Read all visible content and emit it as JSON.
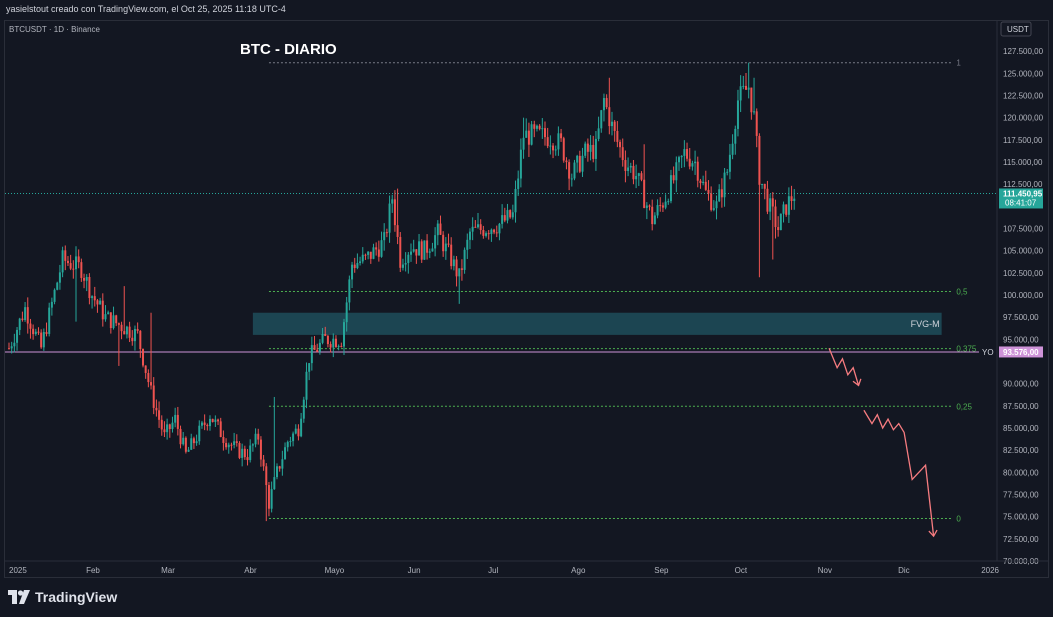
{
  "header": {
    "credit": "yasielstout creado con TradingView.com, el Oct 25, 2025 11:18 UTC-4"
  },
  "chart_meta": {
    "symbol_line": "BTCUSDT · 1D · Binance",
    "title": "BTC - DIARIO",
    "currency_badge": "USDT",
    "price_badge": "111.450,95",
    "countdown_badge": "08:41:07",
    "yo_value_badge": "93.576,00",
    "yo_label": "YO",
    "fvg_label": "FVG-M",
    "colors": {
      "background": "#131722",
      "up": "#26a69a",
      "down": "#ef5350",
      "level": "#4caf50",
      "yo_line": "#ce93d8",
      "fvg_fill": "#1e4e5a",
      "arrow": "#f77c80"
    }
  },
  "chart_data": {
    "type": "candlestick",
    "title": "BTC - DIARIO",
    "symbol": "BTCUSDT · 1D · Binance",
    "ylim": [
      70000,
      130000
    ],
    "y_ticks": [
      {
        "v": 127500,
        "label": "127.500,00"
      },
      {
        "v": 125000,
        "label": "125.000,00"
      },
      {
        "v": 122500,
        "label": "122.500,00"
      },
      {
        "v": 120000,
        "label": "120.000,00"
      },
      {
        "v": 117500,
        "label": "117.500,00"
      },
      {
        "v": 115000,
        "label": "115.000,00"
      },
      {
        "v": 112500,
        "label": "112.500,00"
      },
      {
        "v": 107500,
        "label": "107.500,00"
      },
      {
        "v": 105000,
        "label": "105.000,00"
      },
      {
        "v": 102500,
        "label": "102.500,00"
      },
      {
        "v": 100000,
        "label": "100.000,00"
      },
      {
        "v": 97500,
        "label": "97.500,00"
      },
      {
        "v": 95000,
        "label": "95.000,00"
      },
      {
        "v": 90000,
        "label": "90.000,00"
      },
      {
        "v": 87500,
        "label": "87.500,00"
      },
      {
        "v": 85000,
        "label": "85.000,00"
      },
      {
        "v": 82500,
        "label": "82.500,00"
      },
      {
        "v": 80000,
        "label": "80.000,00"
      },
      {
        "v": 77500,
        "label": "77.500,00"
      },
      {
        "v": 75000,
        "label": "75.000,00"
      },
      {
        "v": 72500,
        "label": "72.500,00"
      },
      {
        "v": 70000,
        "label": "70.000,00"
      }
    ],
    "x_ticks": [
      {
        "d": 0,
        "label": "2025"
      },
      {
        "d": 31,
        "label": "Feb"
      },
      {
        "d": 59,
        "label": "Mar"
      },
      {
        "d": 90,
        "label": "Abr"
      },
      {
        "d": 120,
        "label": "Mayo"
      },
      {
        "d": 151,
        "label": "Jun"
      },
      {
        "d": 181,
        "label": "Jul"
      },
      {
        "d": 212,
        "label": "Ago"
      },
      {
        "d": 243,
        "label": "Sep"
      },
      {
        "d": 273,
        "label": "Oct"
      },
      {
        "d": 304,
        "label": "Nov"
      },
      {
        "d": 334,
        "label": "Dic"
      },
      {
        "d": 365,
        "label": "2026"
      }
    ],
    "candles_close_path": [
      [
        0,
        94000
      ],
      [
        6,
        98500
      ],
      [
        12,
        94000
      ],
      [
        20,
        104000
      ],
      [
        27,
        103000
      ],
      [
        31,
        100000
      ],
      [
        36,
        97500
      ],
      [
        42,
        96500
      ],
      [
        48,
        95500
      ],
      [
        53,
        89000
      ],
      [
        58,
        84000
      ],
      [
        62,
        86000
      ],
      [
        66,
        82000
      ],
      [
        70,
        84000
      ],
      [
        75,
        86500
      ],
      [
        80,
        84000
      ],
      [
        85,
        82500
      ],
      [
        89,
        82000
      ],
      [
        93,
        84000
      ],
      [
        97,
        76500
      ],
      [
        100,
        80000
      ],
      [
        104,
        83500
      ],
      [
        108,
        85000
      ],
      [
        112,
        93000
      ],
      [
        118,
        95000
      ],
      [
        124,
        95000
      ],
      [
        128,
        103500
      ],
      [
        133,
        104000
      ],
      [
        140,
        106000
      ],
      [
        143,
        111000
      ],
      [
        146,
        104000
      ],
      [
        150,
        105500
      ],
      [
        155,
        105000
      ],
      [
        160,
        107000
      ],
      [
        165,
        104000
      ],
      [
        168,
        102000
      ],
      [
        172,
        107000
      ],
      [
        177,
        107500
      ],
      [
        183,
        108000
      ],
      [
        188,
        109000
      ],
      [
        192,
        118000
      ],
      [
        197,
        118000
      ],
      [
        202,
        117800
      ],
      [
        206,
        117000
      ],
      [
        210,
        113500
      ],
      [
        215,
        116000
      ],
      [
        219,
        116500
      ],
      [
        222,
        122000
      ],
      [
        226,
        118000
      ],
      [
        230,
        115000
      ],
      [
        234,
        113500
      ],
      [
        240,
        108500
      ],
      [
        244,
        110500
      ],
      [
        248,
        113000
      ],
      [
        252,
        116000
      ],
      [
        256,
        115000
      ],
      [
        260,
        111500
      ],
      [
        264,
        110000
      ],
      [
        268,
        114000
      ],
      [
        272,
        122000
      ],
      [
        276,
        123500
      ],
      [
        278,
        120000
      ],
      [
        280,
        113500
      ],
      [
        283,
        110500
      ],
      [
        287,
        107500
      ],
      [
        290,
        110000
      ],
      [
        293,
        111450
      ]
    ],
    "high_wicks": [
      [
        43,
        101000
      ],
      [
        53,
        98000
      ],
      [
        99,
        88500
      ],
      [
        105,
        84000
      ],
      [
        145,
        112000
      ],
      [
        192,
        120000
      ],
      [
        224,
        124500
      ],
      [
        237,
        117000
      ],
      [
        276,
        126200
      ],
      [
        278,
        124500
      ]
    ],
    "low_wicks": [
      [
        25,
        97000
      ],
      [
        41,
        92000
      ],
      [
        96,
        74500
      ],
      [
        98,
        75500
      ],
      [
        168,
        99000
      ],
      [
        280,
        102000
      ],
      [
        285,
        104000
      ]
    ],
    "last_price": 111450.95,
    "levels": [
      {
        "label": "1",
        "value": 126200,
        "x_start_day": 97,
        "x_end_day": 352
      },
      {
        "label": "0,5",
        "value": 100400,
        "x_start_day": 97,
        "x_end_day": 352
      },
      {
        "label": "0,375",
        "value": 93950,
        "x_start_day": 97,
        "x_end_day": 352
      },
      {
        "label": "0,25",
        "value": 87450,
        "x_start_day": 97,
        "x_end_day": 352
      },
      {
        "label": "0",
        "value": 74800,
        "x_start_day": 97,
        "x_end_day": 352
      }
    ],
    "yo_level": {
      "label": "YO",
      "value": 93576
    },
    "fvg_zone": {
      "label": "FVG-M",
      "low": 95500,
      "high": 98000,
      "x_start_day": 91,
      "x_end_day": 348
    },
    "projection_arrows": [
      [
        [
          306,
          94000
        ],
        [
          309,
          91800
        ],
        [
          311,
          92800
        ],
        [
          313,
          91000
        ],
        [
          315,
          91800
        ],
        [
          317,
          89800
        ]
      ],
      [
        [
          319,
          87000
        ],
        [
          322,
          85500
        ],
        [
          324,
          86500
        ],
        [
          326,
          85000
        ],
        [
          328,
          86000
        ],
        [
          330,
          84800
        ],
        [
          332,
          85500
        ],
        [
          334,
          84500
        ],
        [
          337,
          79200
        ],
        [
          342,
          80800
        ],
        [
          345,
          72800
        ]
      ]
    ]
  }
}
